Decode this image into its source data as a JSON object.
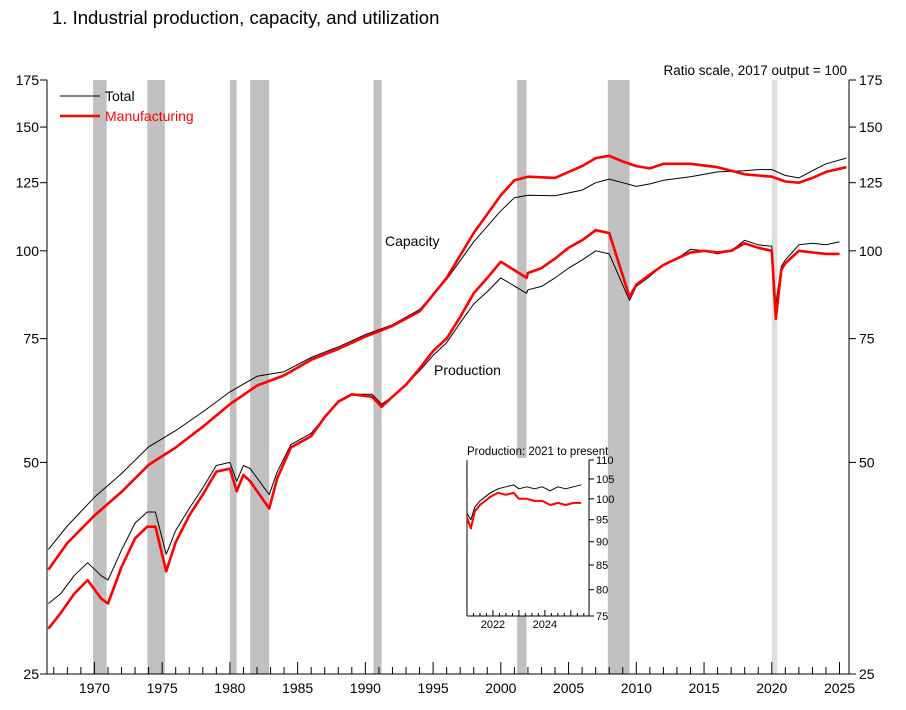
{
  "title": "1.  Industrial production, capacity, and utilization",
  "scale_note": "Ratio scale, 2017 output = 100",
  "labels": {
    "capacity": "Capacity",
    "production": "Production"
  },
  "colors": {
    "total": "#000000",
    "manufacturing": "#ff0000",
    "recession": "#c0c0c0",
    "recession_light": "#dedede"
  },
  "legend": [
    {
      "name": "Total",
      "color": "#000000"
    },
    {
      "name": "Manufacturing",
      "color": "#ff0000"
    }
  ],
  "chart_data": [
    {
      "type": "line",
      "scale": "log",
      "ylim": [
        25,
        175
      ],
      "xlim": [
        1966.5,
        2025.7
      ],
      "y_ticks": [
        25,
        50,
        75,
        100,
        125,
        150,
        175
      ],
      "x_ticks": [
        1970,
        1975,
        1980,
        1985,
        1990,
        1995,
        2000,
        2005,
        2010,
        2015,
        2020,
        2025
      ],
      "legend_position": "top-left",
      "recessions": [
        {
          "start": 1969.9,
          "end": 1970.9
        },
        {
          "start": 1973.9,
          "end": 1975.2
        },
        {
          "start": 1980.0,
          "end": 1980.5
        },
        {
          "start": 1981.5,
          "end": 1982.9
        },
        {
          "start": 1990.6,
          "end": 1991.2
        },
        {
          "start": 2001.2,
          "end": 2001.9
        },
        {
          "start": 2007.9,
          "end": 2009.5
        },
        {
          "start": 2020.0,
          "end": 2020.4,
          "style": "light"
        }
      ],
      "series": [
        {
          "name": "Total",
          "group": "capacity",
          "color": "#000000",
          "points": [
            [
              1966.6,
              37.6
            ],
            [
              1968,
              40.6
            ],
            [
              1970,
              44.6
            ],
            [
              1972,
              48.2
            ],
            [
              1974,
              52.6
            ],
            [
              1976,
              55.5
            ],
            [
              1978,
              59.0
            ],
            [
              1980,
              63.0
            ],
            [
              1982,
              66.3
            ],
            [
              1984,
              67.3
            ],
            [
              1986,
              70.5
            ],
            [
              1988,
              73.0
            ],
            [
              1990,
              76.0
            ],
            [
              1992,
              78.5
            ],
            [
              1994,
              82.5
            ],
            [
              1996,
              91.0
            ],
            [
              1998,
              103.0
            ],
            [
              2000,
              114.0
            ],
            [
              2001,
              119.0
            ],
            [
              2002,
              120.0
            ],
            [
              2004,
              119.8
            ],
            [
              2006,
              122.0
            ],
            [
              2007,
              125.0
            ],
            [
              2008,
              126.5
            ],
            [
              2009,
              125.0
            ],
            [
              2010,
              123.5
            ],
            [
              2011,
              124.5
            ],
            [
              2012,
              126.0
            ],
            [
              2014,
              127.5
            ],
            [
              2016,
              129.5
            ],
            [
              2018,
              130.0
            ],
            [
              2019,
              130.5
            ],
            [
              2020,
              130.5
            ],
            [
              2021,
              128.0
            ],
            [
              2022,
              127.0
            ],
            [
              2023,
              130.0
            ],
            [
              2024,
              133.0
            ],
            [
              2025.5,
              135.5
            ]
          ]
        },
        {
          "name": "Manufacturing",
          "group": "capacity",
          "color": "#ff0000",
          "points": [
            [
              1966.6,
              35.2
            ],
            [
              1968,
              38.4
            ],
            [
              1970,
              42.0
            ],
            [
              1972,
              45.4
            ],
            [
              1974,
              49.6
            ],
            [
              1976,
              52.5
            ],
            [
              1978,
              56.2
            ],
            [
              1980,
              60.5
            ],
            [
              1982,
              64.3
            ],
            [
              1984,
              66.5
            ],
            [
              1986,
              70.0
            ],
            [
              1988,
              72.5
            ],
            [
              1990,
              75.5
            ],
            [
              1992,
              78.2
            ],
            [
              1994,
              82.0
            ],
            [
              1996,
              91.5
            ],
            [
              1998,
              106.0
            ],
            [
              2000,
              120.0
            ],
            [
              2001,
              126.0
            ],
            [
              2002,
              127.5
            ],
            [
              2004,
              127.0
            ],
            [
              2006,
              132.0
            ],
            [
              2007,
              135.5
            ],
            [
              2008,
              136.5
            ],
            [
              2009,
              134.0
            ],
            [
              2010,
              132.0
            ],
            [
              2011,
              131.0
            ],
            [
              2012,
              133.0
            ],
            [
              2014,
              133.0
            ],
            [
              2016,
              131.5
            ],
            [
              2018,
              128.5
            ],
            [
              2019,
              128.0
            ],
            [
              2020,
              127.5
            ],
            [
              2021,
              125.5
            ],
            [
              2022,
              125.0
            ],
            [
              2023,
              127.0
            ],
            [
              2024,
              129.5
            ],
            [
              2025.5,
              131.5
            ]
          ]
        },
        {
          "name": "Total",
          "group": "production",
          "color": "#000000",
          "points": [
            [
              1966.6,
              31.5
            ],
            [
              1967.5,
              32.5
            ],
            [
              1968.5,
              34.5
            ],
            [
              1969.5,
              36.0
            ],
            [
              1970.5,
              34.5
            ],
            [
              1971.0,
              34.0
            ],
            [
              1972,
              37.5
            ],
            [
              1973,
              41.0
            ],
            [
              1973.9,
              42.5
            ],
            [
              1974.5,
              42.5
            ],
            [
              1975.3,
              37.0
            ],
            [
              1976,
              40.0
            ],
            [
              1977,
              43.0
            ],
            [
              1978,
              46.0
            ],
            [
              1979,
              49.5
            ],
            [
              1980,
              50.0
            ],
            [
              1980.5,
              47.0
            ],
            [
              1981,
              49.5
            ],
            [
              1981.5,
              49.0
            ],
            [
              1982.9,
              45.0
            ],
            [
              1983.5,
              48.5
            ],
            [
              1984.5,
              53.0
            ],
            [
              1986,
              55.0
            ],
            [
              1987,
              58.0
            ],
            [
              1988,
              61.0
            ],
            [
              1989,
              62.5
            ],
            [
              1990.5,
              62.5
            ],
            [
              1991.2,
              60.5
            ],
            [
              1992,
              62.0
            ],
            [
              1993,
              64.5
            ],
            [
              1994,
              67.5
            ],
            [
              1995,
              71.0
            ],
            [
              1996,
              74.0
            ],
            [
              1997,
              79.0
            ],
            [
              1998,
              84.0
            ],
            [
              1999,
              87.5
            ],
            [
              2000,
              91.5
            ],
            [
              2001.9,
              87.0
            ],
            [
              2002,
              88.0
            ],
            [
              2003,
              89.0
            ],
            [
              2004,
              91.5
            ],
            [
              2005,
              94.5
            ],
            [
              2006,
              97.0
            ],
            [
              2007,
              100.0
            ],
            [
              2008,
              99.0
            ],
            [
              2009.5,
              85.0
            ],
            [
              2010,
              89.0
            ],
            [
              2011,
              92.0
            ],
            [
              2012,
              95.5
            ],
            [
              2013,
              97.5
            ],
            [
              2014,
              100.5
            ],
            [
              2015,
              100.0
            ],
            [
              2016,
              99.0
            ],
            [
              2017,
              100.0
            ],
            [
              2018,
              103.5
            ],
            [
              2019,
              102.0
            ],
            [
              2020.0,
              101.5
            ],
            [
              2020.3,
              84.0
            ],
            [
              2020.7,
              95.0
            ],
            [
              2021,
              97.0
            ],
            [
              2022,
              102.0
            ],
            [
              2023,
              102.5
            ],
            [
              2024,
              102.0
            ],
            [
              2025,
              103.0
            ]
          ]
        },
        {
          "name": "Manufacturing",
          "group": "production",
          "color": "#ff0000",
          "points": [
            [
              1966.6,
              29.0
            ],
            [
              1967.5,
              30.5
            ],
            [
              1968.5,
              32.5
            ],
            [
              1969.5,
              34.0
            ],
            [
              1970.5,
              32.0
            ],
            [
              1971.0,
              31.5
            ],
            [
              1972,
              35.5
            ],
            [
              1973,
              39.0
            ],
            [
              1973.9,
              40.5
            ],
            [
              1974.5,
              40.5
            ],
            [
              1975.3,
              35.0
            ],
            [
              1976,
              38.5
            ],
            [
              1977,
              42.0
            ],
            [
              1978,
              45.0
            ],
            [
              1979,
              48.5
            ],
            [
              1980,
              49.0
            ],
            [
              1980.5,
              45.5
            ],
            [
              1981,
              48.0
            ],
            [
              1981.5,
              47.0
            ],
            [
              1982.9,
              43.0
            ],
            [
              1983.5,
              47.5
            ],
            [
              1984.5,
              52.5
            ],
            [
              1986,
              54.5
            ],
            [
              1987,
              58.0
            ],
            [
              1988,
              61.0
            ],
            [
              1989,
              62.5
            ],
            [
              1990.5,
              62.0
            ],
            [
              1991.2,
              60.0
            ],
            [
              1992,
              62.0
            ],
            [
              1993,
              64.5
            ],
            [
              1994,
              68.0
            ],
            [
              1995,
              72.0
            ],
            [
              1996,
              75.0
            ],
            [
              1997,
              80.5
            ],
            [
              1998,
              87.0
            ],
            [
              1999,
              91.5
            ],
            [
              2000,
              96.5
            ],
            [
              2001.9,
              91.5
            ],
            [
              2002,
              93.0
            ],
            [
              2003,
              94.5
            ],
            [
              2004,
              97.5
            ],
            [
              2005,
              101.0
            ],
            [
              2006,
              103.5
            ],
            [
              2007,
              107.0
            ],
            [
              2008,
              106.0
            ],
            [
              2009.5,
              86.0
            ],
            [
              2010,
              89.5
            ],
            [
              2011,
              92.5
            ],
            [
              2012,
              95.5
            ],
            [
              2013,
              97.5
            ],
            [
              2014,
              99.5
            ],
            [
              2015,
              100.0
            ],
            [
              2016,
              99.5
            ],
            [
              2017,
              100.0
            ],
            [
              2018,
              102.5
            ],
            [
              2019,
              101.0
            ],
            [
              2020.0,
              100.0
            ],
            [
              2020.3,
              80.0
            ],
            [
              2020.7,
              94.0
            ],
            [
              2021,
              96.0
            ],
            [
              2022,
              100.0
            ],
            [
              2023,
              99.5
            ],
            [
              2024,
              99.0
            ],
            [
              2025,
              99.0
            ]
          ]
        }
      ]
    },
    {
      "type": "line",
      "title": "Production: 2021 to present",
      "scale": "log",
      "ylim": [
        75,
        110
      ],
      "xlim": [
        2021.0,
        2025.7
      ],
      "y_ticks": [
        75,
        80,
        85,
        90,
        95,
        100,
        105,
        110
      ],
      "x_ticks": [
        2022,
        2024
      ],
      "series": [
        {
          "name": "Total",
          "color": "#000000",
          "points": [
            [
              2021.0,
              96.5
            ],
            [
              2021.15,
              95.0
            ],
            [
              2021.3,
              98.0
            ],
            [
              2021.5,
              99.5
            ],
            [
              2021.7,
              100.5
            ],
            [
              2021.9,
              101.5
            ],
            [
              2022.2,
              102.5
            ],
            [
              2022.5,
              103.0
            ],
            [
              2022.8,
              103.5
            ],
            [
              2023.0,
              102.5
            ],
            [
              2023.3,
              103.0
            ],
            [
              2023.6,
              102.5
            ],
            [
              2023.9,
              103.0
            ],
            [
              2024.2,
              102.0
            ],
            [
              2024.5,
              103.0
            ],
            [
              2024.8,
              102.5
            ],
            [
              2025.1,
              103.0
            ],
            [
              2025.4,
              103.5
            ]
          ]
        },
        {
          "name": "Manufacturing",
          "color": "#ff0000",
          "points": [
            [
              2021.0,
              95.5
            ],
            [
              2021.15,
              93.0
            ],
            [
              2021.3,
              97.0
            ],
            [
              2021.5,
              98.5
            ],
            [
              2021.7,
              99.5
            ],
            [
              2021.9,
              100.5
            ],
            [
              2022.2,
              101.5
            ],
            [
              2022.5,
              101.0
            ],
            [
              2022.8,
              101.5
            ],
            [
              2023.0,
              100.0
            ],
            [
              2023.3,
              100.0
            ],
            [
              2023.6,
              99.5
            ],
            [
              2023.9,
              99.5
            ],
            [
              2024.2,
              98.5
            ],
            [
              2024.5,
              99.0
            ],
            [
              2024.8,
              98.5
            ],
            [
              2025.1,
              99.0
            ],
            [
              2025.4,
              99.0
            ]
          ]
        }
      ]
    }
  ]
}
